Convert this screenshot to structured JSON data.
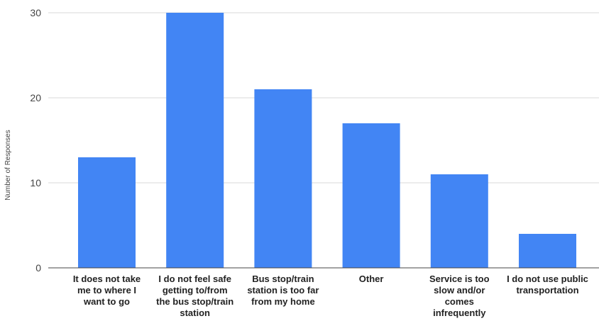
{
  "chart_data": {
    "type": "bar",
    "title": "",
    "xlabel": "",
    "ylabel": "Number of Responses",
    "ylim": [
      0,
      30
    ],
    "y_ticks": [
      0,
      10,
      20,
      30
    ],
    "grid": true,
    "legend": "none",
    "bar_color": "#4285f4",
    "categories": [
      "It does not take me to where I want to go",
      "I do not feel safe getting to/from the bus stop/train station",
      "Bus stop/train station is too far from my home",
      "Other",
      "Service is too slow and/or comes infrequently",
      "I do not use public transportation"
    ],
    "category_lines": [
      [
        "It does not take",
        "me to where I",
        "want to go"
      ],
      [
        "I do not feel safe",
        "getting to/from",
        "the bus stop/train",
        "station"
      ],
      [
        "Bus stop/train",
        "station is too far",
        "from my home"
      ],
      [
        "Other"
      ],
      [
        "Service is too",
        "slow and/or",
        "comes",
        "infrequently"
      ],
      [
        "I do not use public",
        "transportation"
      ]
    ],
    "values": [
      13,
      30,
      21,
      17,
      11,
      4
    ]
  }
}
